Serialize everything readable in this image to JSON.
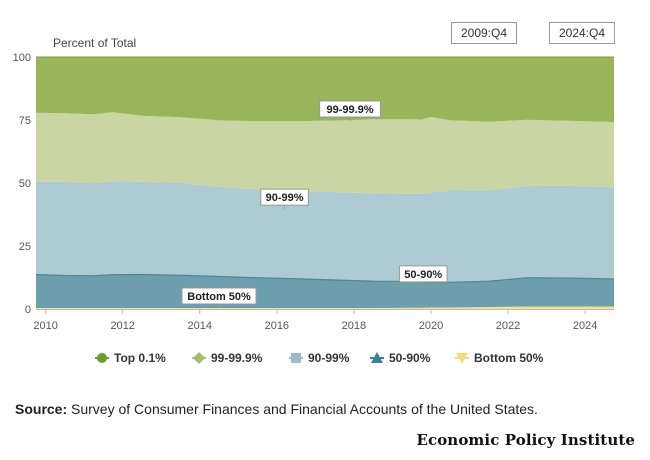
{
  "controls": {
    "range_start": "2009:Q4",
    "range_end": "2024:Q4"
  },
  "chart_data": {
    "type": "area",
    "stacked": true,
    "ylabel": "Percent of Total",
    "ylim": [
      0,
      100
    ],
    "yticks": [
      0,
      25,
      50,
      75,
      100
    ],
    "xlim": [
      2009.75,
      2024.75
    ],
    "xticks": [
      "2010",
      "2012",
      "2014",
      "2016",
      "2018",
      "2020",
      "2022",
      "2024"
    ],
    "x": [
      2009.75,
      2010.5,
      2011.25,
      2011.75,
      2012.5,
      2013.5,
      2014.5,
      2015.5,
      2016.5,
      2017.5,
      2018.5,
      2019.5,
      2019.75,
      2020.0,
      2020.5,
      2021.5,
      2022.5,
      2023.5,
      2024.75
    ],
    "series": [
      {
        "name": "Bottom 50%",
        "color": "#f5de8c",
        "values": [
          0.4,
          0.4,
          0.4,
          0.4,
          0.4,
          0.4,
          0.4,
          0.4,
          0.4,
          0.4,
          0.4,
          0.5,
          0.5,
          0.6,
          0.6,
          0.8,
          1.0,
          1.0,
          1.0
        ]
      },
      {
        "name": "50-90%",
        "color": "#6c9ead",
        "values": [
          13.3,
          12.9,
          12.8,
          13.2,
          13.3,
          13.0,
          12.5,
          12.0,
          11.6,
          11.1,
          10.6,
          10.4,
          10.3,
          10.0,
          10.0,
          10.2,
          11.4,
          11.3,
          10.9
        ]
      },
      {
        "name": "90-99%",
        "color": "#aecbd3",
        "values": [
          36.8,
          37.2,
          36.7,
          37.1,
          36.8,
          36.6,
          35.6,
          35.1,
          35.0,
          34.9,
          34.9,
          34.8,
          34.9,
          35.7,
          36.4,
          36.1,
          36.4,
          36.6,
          36.4
        ]
      },
      {
        "name": "99-99.9%",
        "color": "#c9d6a3",
        "values": [
          27.4,
          27.2,
          27.4,
          27.4,
          26.2,
          26.1,
          26.4,
          27.0,
          27.5,
          28.4,
          29.4,
          29.6,
          29.5,
          29.9,
          27.9,
          27.2,
          26.3,
          25.8,
          25.9
        ]
      },
      {
        "name": "Top 0.1%",
        "color": "#98b55a",
        "values": [
          22.1,
          22.3,
          22.7,
          21.9,
          23.3,
          23.9,
          25.1,
          25.5,
          25.5,
          25.2,
          24.7,
          24.7,
          24.8,
          23.8,
          25.1,
          25.7,
          24.9,
          25.3,
          25.8
        ]
      }
    ],
    "annotations": [
      {
        "text": "99-99.9%",
        "series": "99-99.9%",
        "x": 2017.9
      },
      {
        "text": "90-99%",
        "series": "90-99%",
        "x": 2016.2
      },
      {
        "text": "50-90%",
        "series": "50-90%",
        "x": 2019.8
      },
      {
        "text": "Bottom 50%",
        "series": "Bottom 50%",
        "x": 2014.5
      }
    ],
    "legend_position": "bottom",
    "legend": [
      {
        "label": "Top 0.1%",
        "marker": "circle",
        "color": "#6f9a31"
      },
      {
        "label": "99-99.9%",
        "marker": "diamond",
        "color": "#a6bd6e"
      },
      {
        "label": "90-99%",
        "marker": "square",
        "color": "#9dbcc6"
      },
      {
        "label": "50-90%",
        "marker": "triangle",
        "color": "#3f7f8f"
      },
      {
        "label": "Bottom 50%",
        "marker": "triangle-down",
        "color": "#f3d981"
      }
    ]
  },
  "footer": {
    "source_label": "Source:",
    "source_text": "Survey of Consumer Finances and Financial Accounts of the United States.",
    "brand": "Economic Policy Institute"
  }
}
